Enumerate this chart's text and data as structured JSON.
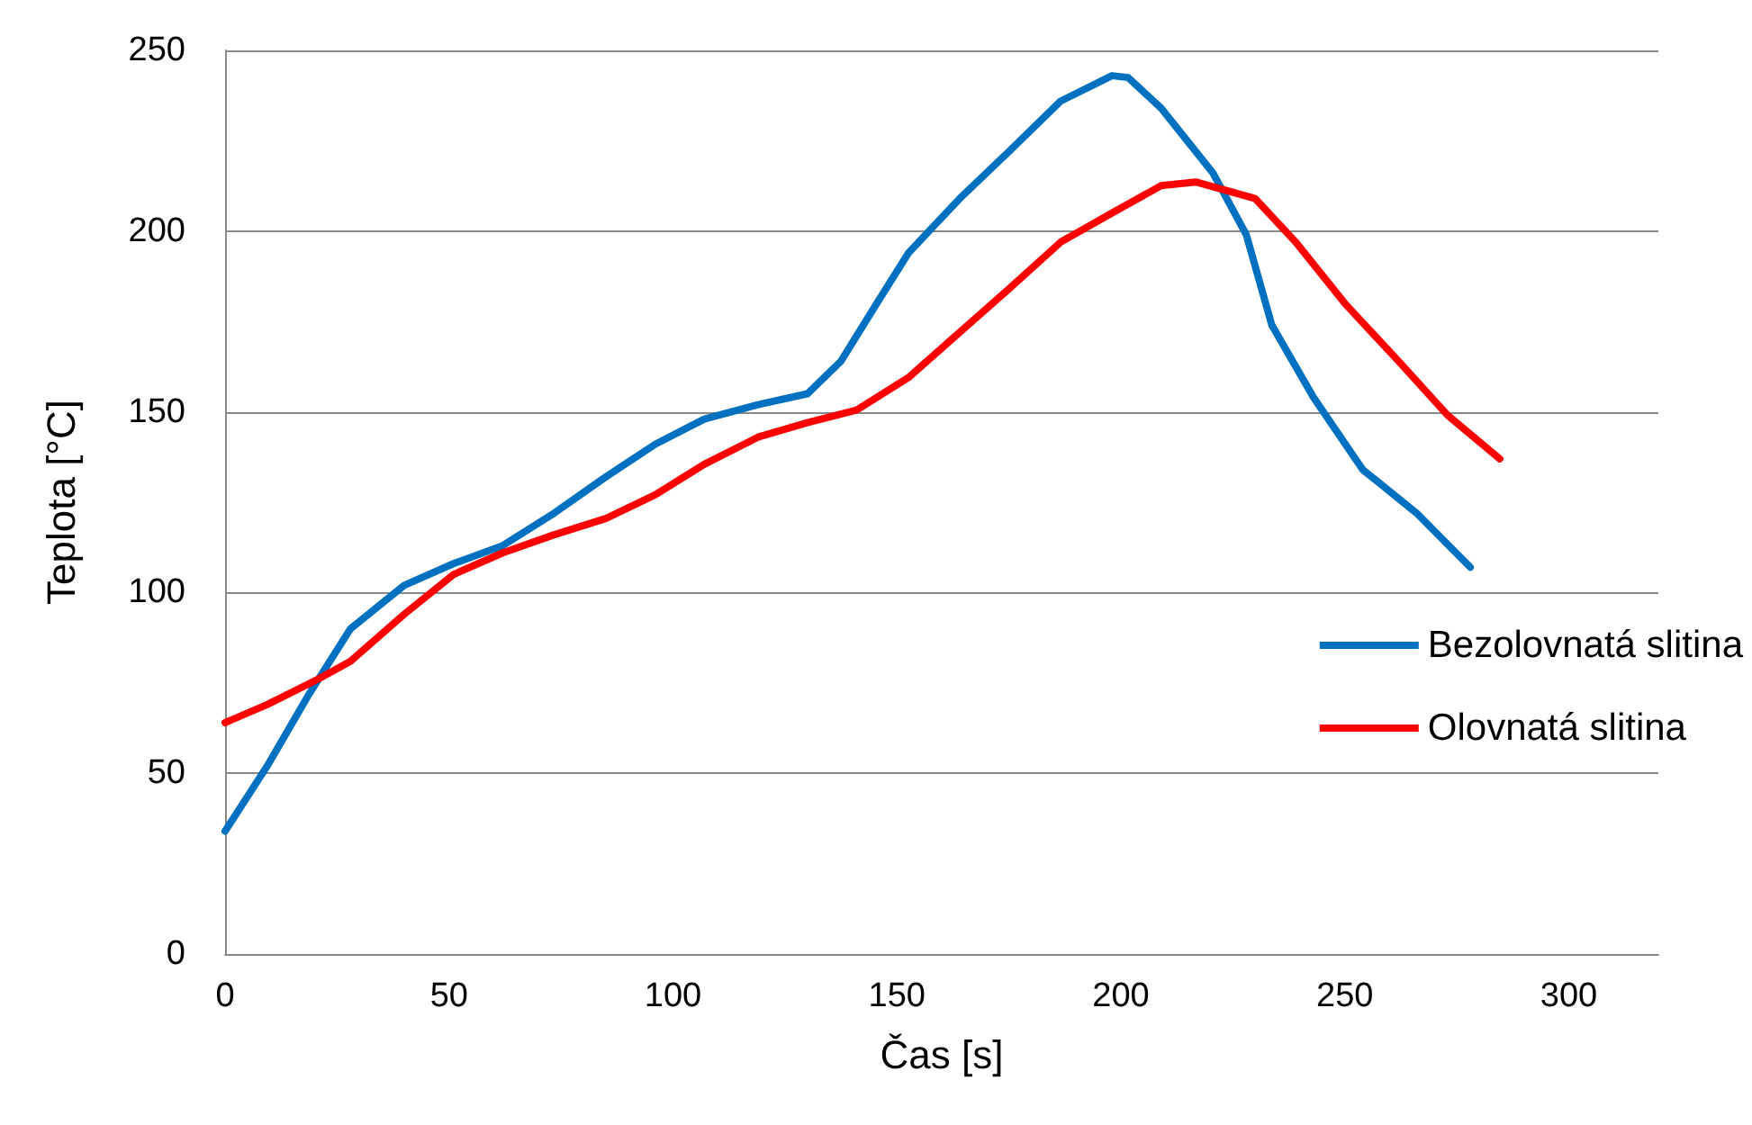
{
  "chart_data": {
    "type": "line",
    "xlabel": "Čas [s]",
    "ylabel": "Teplota [°C]",
    "xlim": [
      0,
      320
    ],
    "xticks": [
      0,
      50,
      100,
      150,
      200,
      250,
      300
    ],
    "ylim": [
      0,
      250
    ],
    "yticks": [
      0,
      50,
      100,
      150,
      200,
      250
    ],
    "grid": "y",
    "legend": "right",
    "marker": "none",
    "line_style": "solid",
    "series": [
      {
        "name": "Bezolovnatá slitina",
        "color": "#0070c0",
        "x": [
          0,
          9.4,
          18.8,
          28,
          40,
          51,
          62,
          73.5,
          85,
          96,
          107,
          119,
          130,
          137.5,
          145,
          152.6,
          164,
          175,
          186.6,
          198,
          201.6,
          209,
          220.6,
          228,
          233.7,
          243,
          254,
          266,
          278
        ],
        "values": [
          34,
          52,
          72,
          90,
          102,
          108,
          113,
          122,
          132,
          141,
          148,
          152,
          155,
          164,
          179,
          194,
          209,
          222,
          236,
          243,
          242.5,
          234,
          216,
          199,
          174,
          154,
          134,
          122,
          107
        ]
      },
      {
        "name": "Olovnatá slitina",
        "color": "#ff0000",
        "x": [
          0,
          9.4,
          20.7,
          28,
          40,
          51,
          62,
          73.5,
          85,
          96,
          107,
          119,
          130,
          141,
          152.6,
          164,
          175,
          186.6,
          198,
          209,
          216.7,
          230,
          239,
          250,
          262,
          273,
          284.6
        ],
        "values": [
          64,
          69,
          76,
          81,
          94,
          105,
          111,
          116,
          120.5,
          127,
          135.5,
          143,
          147,
          150.5,
          159.5,
          172,
          184,
          197,
          205,
          212.6,
          213.6,
          209,
          197,
          180,
          164,
          149,
          137
        ]
      }
    ]
  }
}
